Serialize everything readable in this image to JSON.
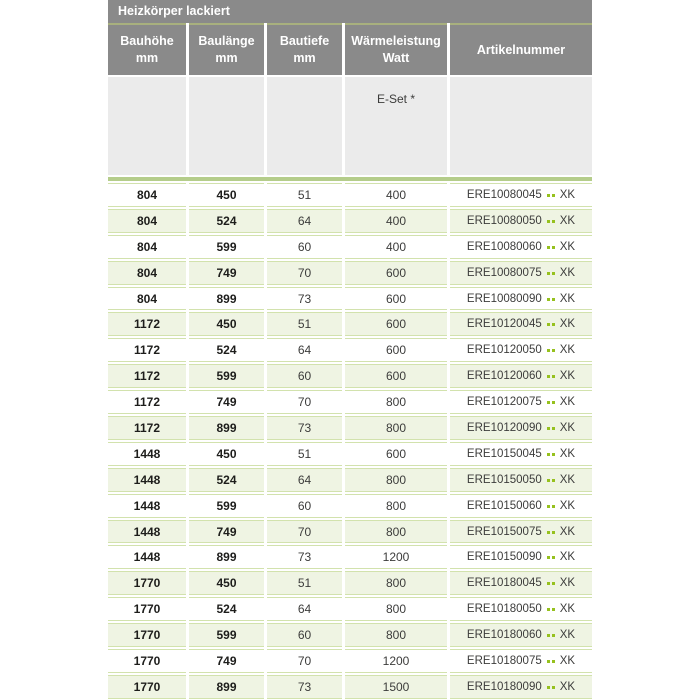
{
  "title": "Heizkörper lackiert",
  "header": {
    "columns": [
      {
        "line1": "Bauhöhe",
        "line2": "mm"
      },
      {
        "line1": "Baulänge",
        "line2": "mm"
      },
      {
        "line1": "Bautiefe",
        "line2": "mm"
      },
      {
        "line1": "Wärmeleistung",
        "line2": "Watt"
      },
      {
        "line1": "Artikelnummer",
        "line2": ""
      }
    ],
    "eset_label": "E-Set *"
  },
  "rows": [
    {
      "bauhoehe": "804",
      "baulaenge": "450",
      "bautiefe": "51",
      "watt": "400",
      "artikel_prefix": "ERE10080045",
      "artikel_suffix": "XK"
    },
    {
      "bauhoehe": "804",
      "baulaenge": "524",
      "bautiefe": "64",
      "watt": "400",
      "artikel_prefix": "ERE10080050",
      "artikel_suffix": "XK"
    },
    {
      "bauhoehe": "804",
      "baulaenge": "599",
      "bautiefe": "60",
      "watt": "400",
      "artikel_prefix": "ERE10080060",
      "artikel_suffix": "XK"
    },
    {
      "bauhoehe": "804",
      "baulaenge": "749",
      "bautiefe": "70",
      "watt": "600",
      "artikel_prefix": "ERE10080075",
      "artikel_suffix": "XK"
    },
    {
      "bauhoehe": "804",
      "baulaenge": "899",
      "bautiefe": "73",
      "watt": "600",
      "artikel_prefix": "ERE10080090",
      "artikel_suffix": "XK"
    },
    {
      "bauhoehe": "1172",
      "baulaenge": "450",
      "bautiefe": "51",
      "watt": "600",
      "artikel_prefix": "ERE10120045",
      "artikel_suffix": "XK"
    },
    {
      "bauhoehe": "1172",
      "baulaenge": "524",
      "bautiefe": "64",
      "watt": "600",
      "artikel_prefix": "ERE10120050",
      "artikel_suffix": "XK"
    },
    {
      "bauhoehe": "1172",
      "baulaenge": "599",
      "bautiefe": "60",
      "watt": "600",
      "artikel_prefix": "ERE10120060",
      "artikel_suffix": "XK"
    },
    {
      "bauhoehe": "1172",
      "baulaenge": "749",
      "bautiefe": "70",
      "watt": "800",
      "artikel_prefix": "ERE10120075",
      "artikel_suffix": "XK"
    },
    {
      "bauhoehe": "1172",
      "baulaenge": "899",
      "bautiefe": "73",
      "watt": "800",
      "artikel_prefix": "ERE10120090",
      "artikel_suffix": "XK"
    },
    {
      "bauhoehe": "1448",
      "baulaenge": "450",
      "bautiefe": "51",
      "watt": "600",
      "artikel_prefix": "ERE10150045",
      "artikel_suffix": "XK"
    },
    {
      "bauhoehe": "1448",
      "baulaenge": "524",
      "bautiefe": "64",
      "watt": "800",
      "artikel_prefix": "ERE10150050",
      "artikel_suffix": "XK"
    },
    {
      "bauhoehe": "1448",
      "baulaenge": "599",
      "bautiefe": "60",
      "watt": "800",
      "artikel_prefix": "ERE10150060",
      "artikel_suffix": "XK"
    },
    {
      "bauhoehe": "1448",
      "baulaenge": "749",
      "bautiefe": "70",
      "watt": "800",
      "artikel_prefix": "ERE10150075",
      "artikel_suffix": "XK"
    },
    {
      "bauhoehe": "1448",
      "baulaenge": "899",
      "bautiefe": "73",
      "watt": "1200",
      "artikel_prefix": "ERE10150090",
      "artikel_suffix": "XK"
    },
    {
      "bauhoehe": "1770",
      "baulaenge": "450",
      "bautiefe": "51",
      "watt": "800",
      "artikel_prefix": "ERE10180045",
      "artikel_suffix": "XK"
    },
    {
      "bauhoehe": "1770",
      "baulaenge": "524",
      "bautiefe": "64",
      "watt": "800",
      "artikel_prefix": "ERE10180050",
      "artikel_suffix": "XK"
    },
    {
      "bauhoehe": "1770",
      "baulaenge": "599",
      "bautiefe": "60",
      "watt": "800",
      "artikel_prefix": "ERE10180060",
      "artikel_suffix": "XK"
    },
    {
      "bauhoehe": "1770",
      "baulaenge": "749",
      "bautiefe": "70",
      "watt": "1200",
      "artikel_prefix": "ERE10180075",
      "artikel_suffix": "XK"
    },
    {
      "bauhoehe": "1770",
      "baulaenge": "899",
      "bautiefe": "73",
      "watt": "1500",
      "artikel_prefix": "ERE10180090",
      "artikel_suffix": "XK"
    }
  ],
  "colors": {
    "header_gray": "#8a8a8a",
    "subheader_gray": "#ebebeb",
    "divider_olive": "#a8b07e",
    "band_green": "#b5cd8b",
    "hairline_green": "#d2e2ad",
    "row_alt_green": "#eff4e3",
    "dot_green": "#96c11e",
    "text_dark": "#3c3c3b"
  }
}
